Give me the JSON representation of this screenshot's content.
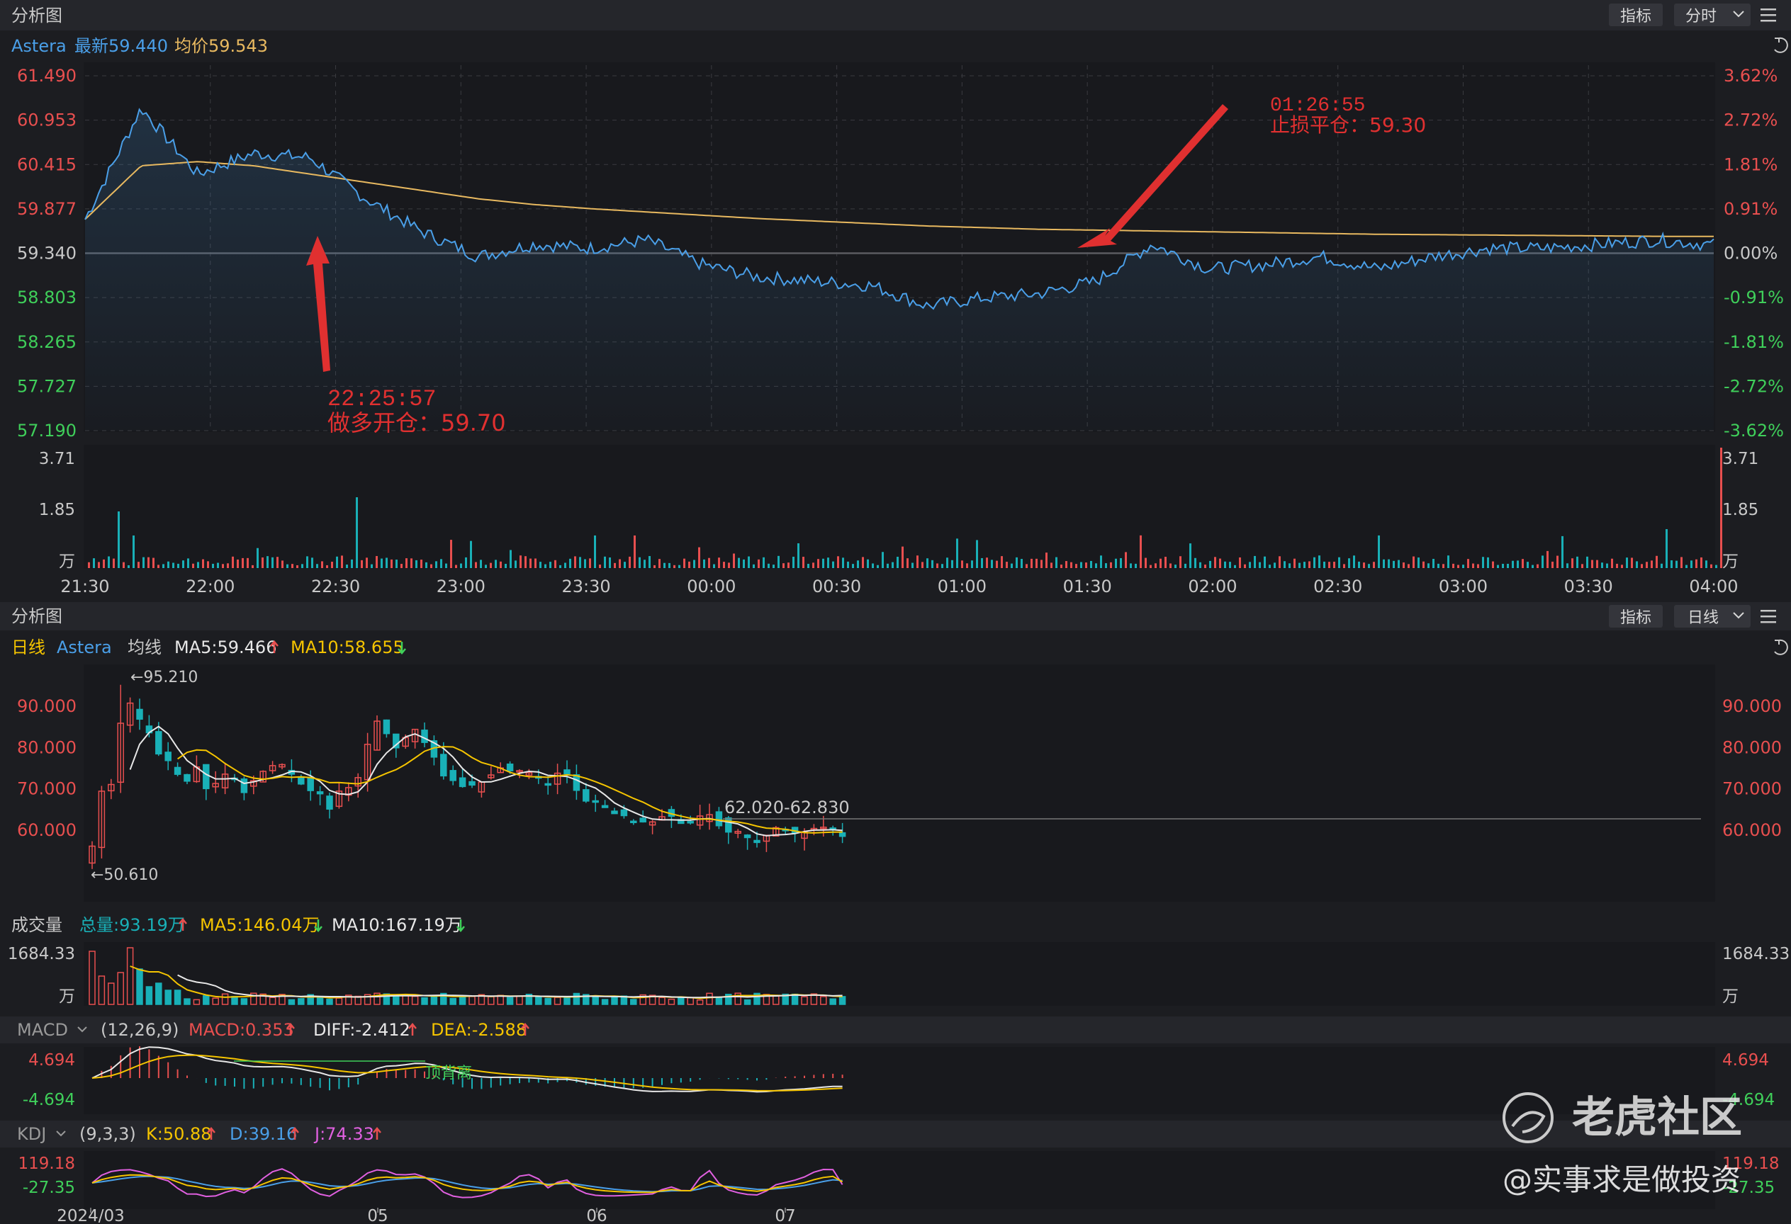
{
  "colors": {
    "bg": "#1c1d21",
    "panel": "#18191d",
    "header": "#25262b",
    "grid": "#3a3b40",
    "price_line": "#4a9fe8",
    "avg_line": "#e8b960",
    "up": "#e84f4f",
    "down": "#19b0b7",
    "green": "#3fcf5a",
    "white": "#e8e8e8",
    "yellow": "#f5c400",
    "magenta": "#e060e0",
    "annotation": "#e03030"
  },
  "top_panel": {
    "title": "分析图",
    "btn_indicator": "指标",
    "btn_period": "分时",
    "legend": {
      "symbol": "Astera",
      "latest": "最新59.440",
      "avg": "均价59.543"
    },
    "price_ticks": [
      "61.490",
      "60.953",
      "60.415",
      "59.877",
      "59.340",
      "58.803",
      "58.265",
      "57.727",
      "57.190"
    ],
    "pct_ticks": [
      "3.62%",
      "2.72%",
      "1.81%",
      "0.91%",
      "0.00%",
      "-0.91%",
      "-1.81%",
      "-2.72%",
      "-3.62%"
    ],
    "vol_ticks": [
      "3.71",
      "1.85",
      "万"
    ],
    "time_ticks": [
      "21:30",
      "22:00",
      "22:30",
      "23:00",
      "23:30",
      "00:00",
      "00:30",
      "01:00",
      "01:30",
      "02:00",
      "02:30",
      "03:00",
      "03:30",
      "04:00"
    ],
    "annotation_buy": {
      "time": "22:25:57",
      "text": "做多开仓：59.70"
    },
    "annotation_sell": {
      "time": "01:26:55",
      "text": "止损平仓：59.30"
    }
  },
  "bottom_panel": {
    "title": "分析图",
    "btn_indicator": "指标",
    "btn_period": "日线",
    "legend": {
      "period": "日线",
      "symbol": "Astera",
      "ma_label": "均线",
      "ma5": "MA5:59.466",
      "ma10": "MA10:58.655"
    },
    "price_ticks": [
      "90.000",
      "80.000",
      "70.000",
      "60.000"
    ],
    "high_label": "←95.210",
    "low_label": "←50.610",
    "range_label": "62.020-62.830",
    "volume": {
      "title": "成交量",
      "total": "总量:93.19万",
      "ma5": "MA5:146.04万",
      "ma10": "MA10:167.19万",
      "tick_top": "1684.33",
      "tick_unit": "万"
    },
    "macd": {
      "title": "MACD",
      "params": "(12,26,9)",
      "macd": "MACD:0.353",
      "diff": "DIFF:-2.412",
      "dea": "DEA:-2.588",
      "tick_top": "4.694",
      "tick_bottom": "-4.694",
      "divergence": "顶背离"
    },
    "kdj": {
      "title": "KDJ",
      "params": "(9,3,3)",
      "k": "K:50.88",
      "d": "D:39.16",
      "j": "J:74.33",
      "tick_top": "119.18",
      "tick_bottom": "-27.35"
    },
    "date_ticks": [
      "2024/03",
      "05",
      "06",
      "07"
    ]
  },
  "watermark": {
    "brand": "老虎社区",
    "handle": "@实事求是做投资"
  },
  "chart_data": {
    "type": "line",
    "title": "",
    "x": [
      "21:30",
      "21:40",
      "21:50",
      "22:00",
      "22:10",
      "22:20",
      "22:30",
      "22:40",
      "22:50",
      "23:00",
      "23:15",
      "23:30",
      "23:45",
      "00:00",
      "00:15",
      "00:30",
      "00:45",
      "01:00",
      "01:15",
      "01:30",
      "01:45",
      "02:00",
      "02:15",
      "02:30",
      "02:45",
      "03:00",
      "03:15",
      "03:30",
      "03:45",
      "04:00"
    ],
    "series": [
      {
        "name": "最新",
        "values": [
          59.75,
          61.1,
          60.3,
          60.55,
          60.5,
          60.0,
          59.6,
          59.3,
          59.45,
          59.4,
          59.5,
          59.2,
          59.05,
          59.0,
          58.95,
          58.7,
          58.8,
          58.85,
          59.0,
          59.45,
          59.15,
          59.2,
          59.3,
          59.15,
          59.3,
          59.4,
          59.4,
          59.45,
          59.5,
          59.44
        ]
      },
      {
        "name": "均价",
        "values": [
          59.75,
          60.4,
          60.45,
          60.4,
          60.3,
          60.2,
          60.1,
          60.0,
          59.93,
          59.88,
          59.84,
          59.8,
          59.76,
          59.73,
          59.7,
          59.67,
          59.65,
          59.63,
          59.62,
          59.61,
          59.6,
          59.59,
          59.58,
          59.57,
          59.565,
          59.56,
          59.555,
          59.55,
          59.545,
          59.543
        ]
      }
    ],
    "ylim": [
      57.19,
      61.49
    ],
    "xlabel": "",
    "ylabel": ""
  }
}
